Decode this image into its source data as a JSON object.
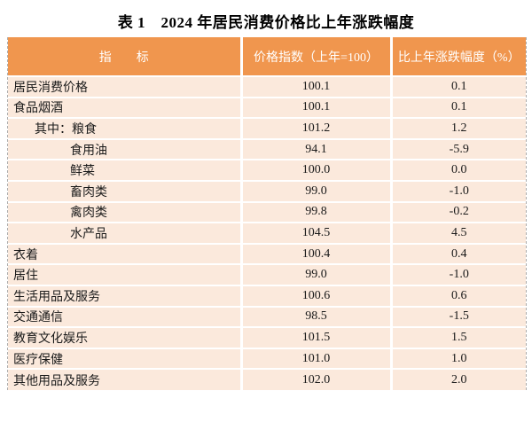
{
  "title": "表 1　2024 年居民消费价格比上年涨跌幅度",
  "colors": {
    "header_bg": "#F0964E",
    "row_bg": "#FBE9DC",
    "header_text": "#FFFFFF",
    "body_text": "#1A1A1A",
    "separator": "#FFFFFF",
    "page_edge_dash": "#ADADAD"
  },
  "table": {
    "columns": [
      "指　　标",
      "价格指数（上年=100）",
      "比上年涨跌幅度（%）"
    ],
    "rows": [
      {
        "label": "居民消费价格",
        "indent": 0,
        "price_index": "100.1",
        "change": "0.1"
      },
      {
        "label": "食品烟酒",
        "indent": 0,
        "price_index": "100.1",
        "change": "0.1"
      },
      {
        "label": "其中：粮食",
        "indent": 1,
        "price_index": "101.2",
        "change": "1.2"
      },
      {
        "label": "食用油",
        "indent": 2,
        "price_index": "94.1",
        "change": "-5.9"
      },
      {
        "label": "鲜菜",
        "indent": 2,
        "price_index": "100.0",
        "change": "0.0"
      },
      {
        "label": "畜肉类",
        "indent": 2,
        "price_index": "99.0",
        "change": "-1.0"
      },
      {
        "label": "禽肉类",
        "indent": 2,
        "price_index": "99.8",
        "change": "-0.2"
      },
      {
        "label": "水产品",
        "indent": 2,
        "price_index": "104.5",
        "change": "4.5"
      },
      {
        "label": "衣着",
        "indent": 0,
        "price_index": "100.4",
        "change": "0.4"
      },
      {
        "label": "居住",
        "indent": 0,
        "price_index": "99.0",
        "change": "-1.0"
      },
      {
        "label": "生活用品及服务",
        "indent": 0,
        "price_index": "100.6",
        "change": "0.6"
      },
      {
        "label": "交通通信",
        "indent": 0,
        "price_index": "98.5",
        "change": "-1.5"
      },
      {
        "label": "教育文化娱乐",
        "indent": 0,
        "price_index": "101.5",
        "change": "1.5"
      },
      {
        "label": "医疗保健",
        "indent": 0,
        "price_index": "101.0",
        "change": "1.0"
      },
      {
        "label": "其他用品及服务",
        "indent": 0,
        "price_index": "102.0",
        "change": "2.0"
      }
    ]
  },
  "chart_data": {
    "type": "table",
    "title": "表 1　2024 年居民消费价格比上年涨跌幅度",
    "columns": [
      "指标",
      "价格指数（上年=100）",
      "比上年涨跌幅度（%）"
    ],
    "rows": [
      [
        "居民消费价格",
        100.1,
        0.1
      ],
      [
        "食品烟酒",
        100.1,
        0.1
      ],
      [
        "其中：粮食",
        101.2,
        1.2
      ],
      [
        "食用油",
        94.1,
        -5.9
      ],
      [
        "鲜菜",
        100.0,
        0.0
      ],
      [
        "畜肉类",
        99.0,
        -1.0
      ],
      [
        "禽肉类",
        99.8,
        -0.2
      ],
      [
        "水产品",
        104.5,
        4.5
      ],
      [
        "衣着",
        100.4,
        0.4
      ],
      [
        "居住",
        99.0,
        -1.0
      ],
      [
        "生活用品及服务",
        100.6,
        0.6
      ],
      [
        "交通通信",
        98.5,
        -1.5
      ],
      [
        "教育文化娱乐",
        101.5,
        1.5
      ],
      [
        "医疗保健",
        101.0,
        1.0
      ],
      [
        "其他用品及服务",
        102.0,
        2.0
      ]
    ]
  }
}
